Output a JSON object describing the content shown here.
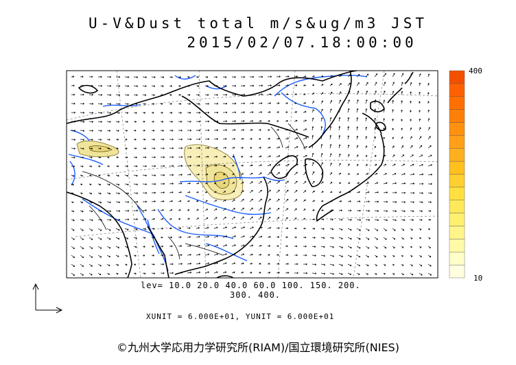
{
  "title": {
    "line1": "U-V&Dust total m/s&ug/m3 JST",
    "line2": "2015/02/07.18:00:00"
  },
  "levels": {
    "line1": "lev= 10.0 20.0 40.0 60.0 100. 150. 200.",
    "line2": "300. 400."
  },
  "units": "XUNIT = 6.000E+01, YUNIT = 6.000E+01",
  "colorbar": {
    "max_label": "400",
    "min_label": "10",
    "colors": [
      "#ffffe0",
      "#ffffc8",
      "#fffaa8",
      "#fff58a",
      "#fff070",
      "#ffe85a",
      "#ffe040",
      "#ffd030",
      "#ffc020",
      "#ffb020",
      "#ffa018",
      "#ff9010",
      "#ff8008",
      "#ff7000",
      "#ff6000",
      "#f25000"
    ]
  },
  "copyright": "©九州大学応用力学研究所(RIAM)/国立環境研究所(NIES)",
  "colors": {
    "coast": "#000000",
    "river": "#1a5cff",
    "dust_fill": "#f5eaa8",
    "dust_contour": "#7a6a20"
  }
}
